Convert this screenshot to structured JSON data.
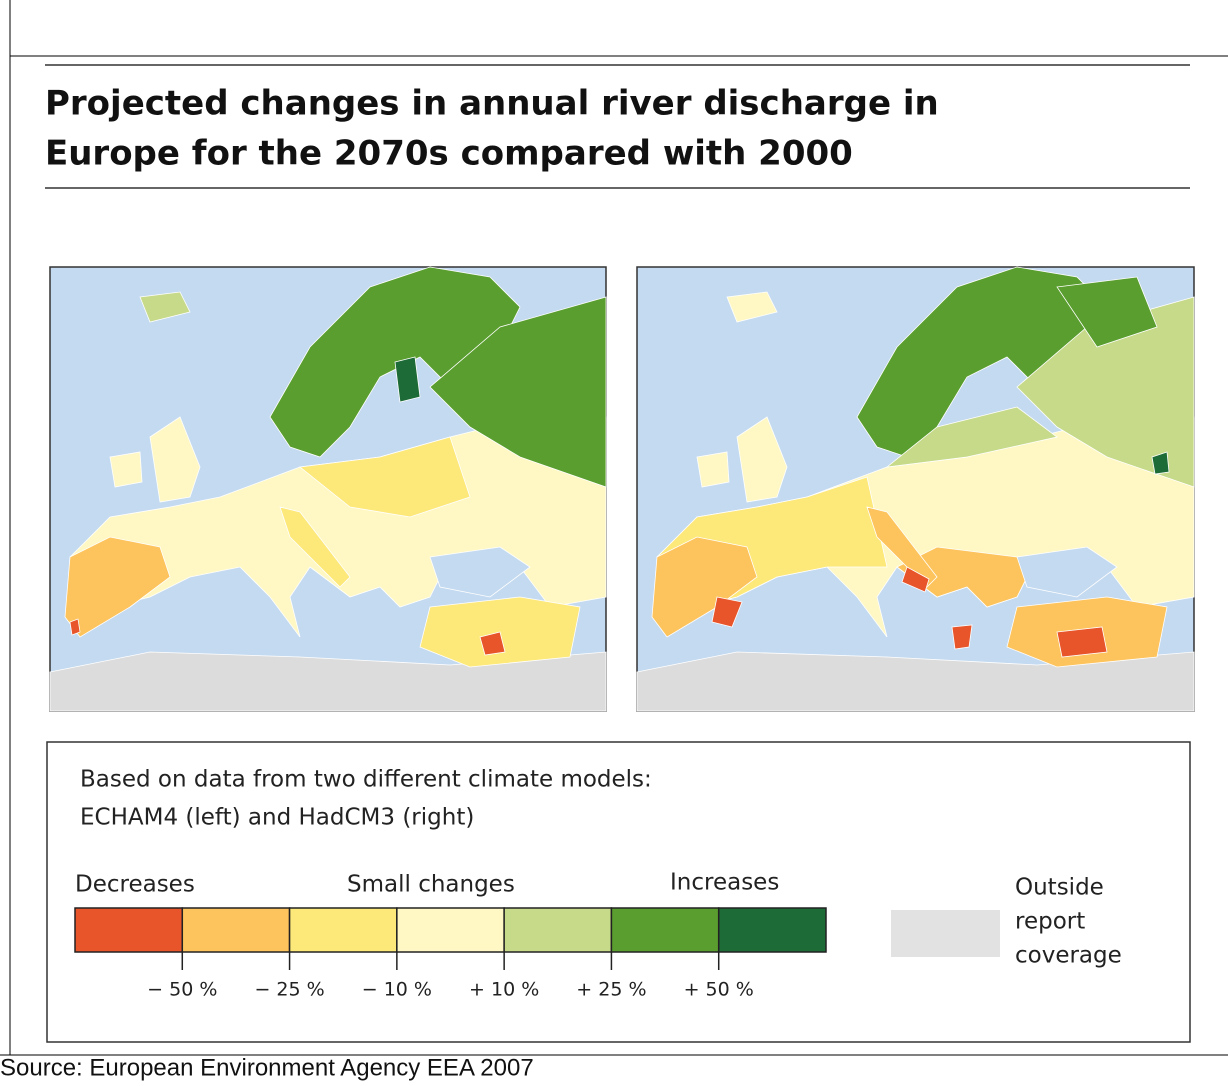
{
  "header": {
    "title_lines": [
      "Projected changes in annual river discharge in",
      "Europe for the 2070s compared with 2000"
    ]
  },
  "caption": {
    "lines": [
      "Based on data from two different climate models:",
      "ECHAM4 (left) and HadCM3 (right)"
    ]
  },
  "legend": {
    "group_labels": [
      "Decreases",
      "Small changes",
      "Increases"
    ],
    "colors": [
      "#e8552b",
      "#fdc35c",
      "#fde87a",
      "#fff8c4",
      "#c6da8a",
      "#5a9e2f",
      "#1d6b36"
    ],
    "tick_labels": [
      "− 50 %",
      "− 25 %",
      "− 10 %",
      "+ 10 %",
      "+ 25 %",
      "+ 50 %"
    ],
    "outside_color": "#e2e2e2",
    "outside_lines": [
      "Outside",
      "report",
      "coverage"
    ]
  },
  "source": "Source: European Environment Agency EEA 2007"
}
